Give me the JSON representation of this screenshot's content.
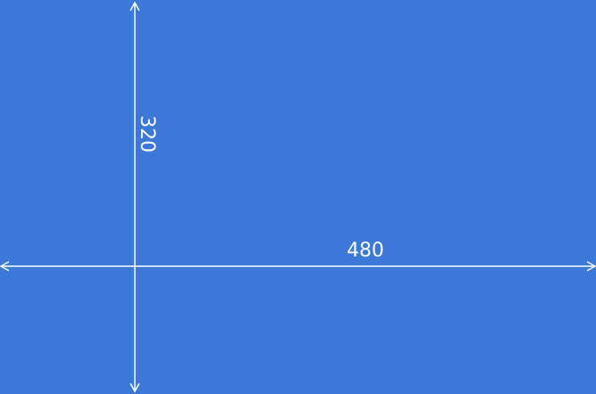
{
  "diagram": {
    "vertical_dimension": {
      "label": "320"
    },
    "horizontal_dimension": {
      "label": "480"
    },
    "colors": {
      "background": "#3b78d8",
      "lines": "#ffffff",
      "text": "#ffffff"
    }
  }
}
